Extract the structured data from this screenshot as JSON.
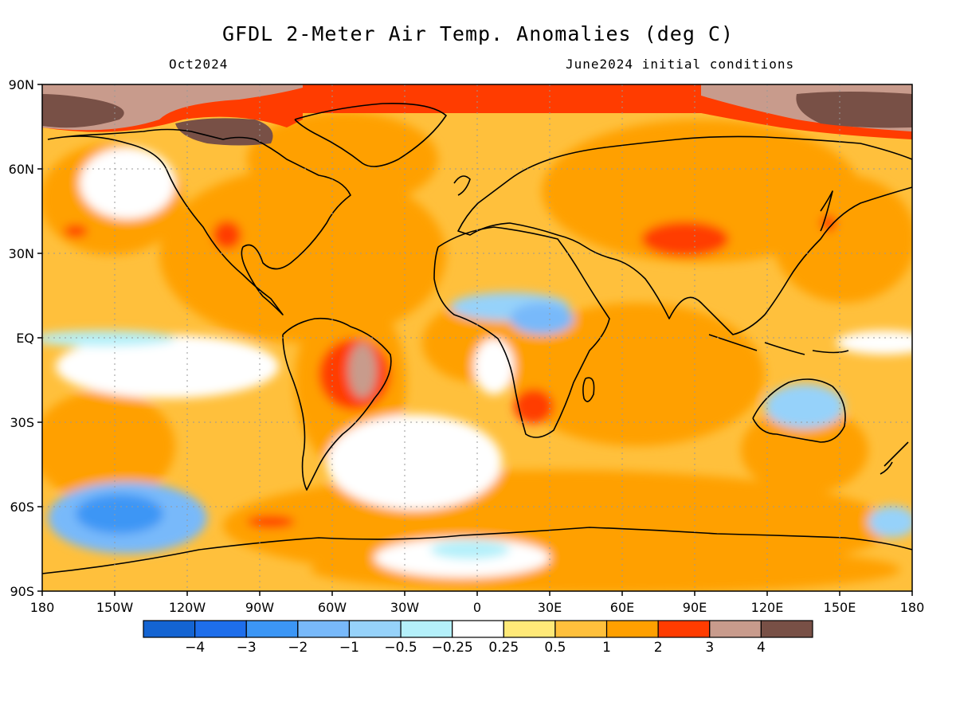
{
  "header": {
    "title": "GFDL 2-Meter Air Temp. Anomalies (deg C)",
    "subtitle_left": "Oct2024",
    "subtitle_right": "June2024 initial conditions"
  },
  "axes": {
    "lon_labels": [
      "180",
      "150W",
      "120W",
      "90W",
      "60W",
      "30W",
      "0",
      "30E",
      "60E",
      "90E",
      "120E",
      "150E",
      "180"
    ],
    "lat_labels": [
      "90N",
      "60N",
      "30N",
      "EQ",
      "30S",
      "60S",
      "90S"
    ]
  },
  "colorbar": {
    "labels": [
      "-4",
      "-3",
      "-2",
      "-1",
      "-0.5",
      "-0.25",
      "0.25",
      "0.5",
      "1",
      "2",
      "3",
      "4"
    ],
    "colors": [
      "#1464d2",
      "#1e6eeb",
      "#3c96f5",
      "#78b9fa",
      "#96d2fa",
      "#b4f0fa",
      "#ffffff",
      "#ffe978",
      "#ffc03c",
      "#ffa000",
      "#ff3c00",
      "#c89b8c",
      "#785046"
    ]
  },
  "map": {
    "background_color": "#ffc03c",
    "grid": true,
    "coastlines": true
  }
}
